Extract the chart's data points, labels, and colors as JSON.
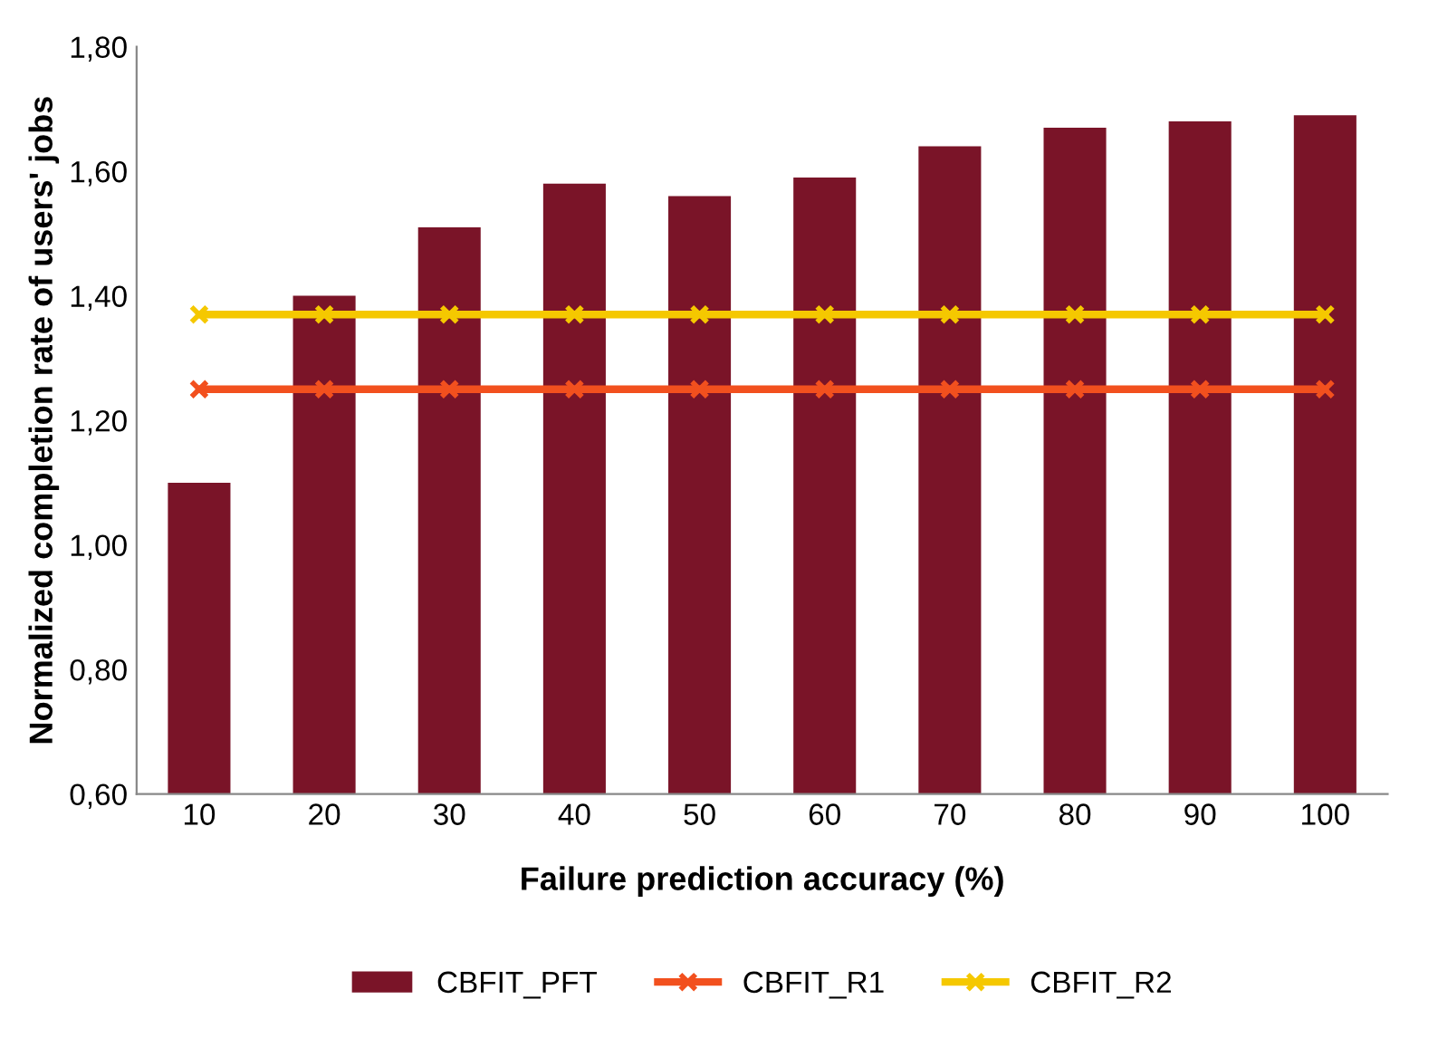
{
  "chart_data": {
    "type": "bar",
    "xlabel": "Failure prediction accuracy (%)",
    "ylabel": "Normalized completion rate of users' jobs",
    "categories": [
      "10",
      "20",
      "30",
      "40",
      "50",
      "60",
      "70",
      "80",
      "90",
      "100"
    ],
    "series": [
      {
        "name": "CBFIT_PFT",
        "color": "#7a1428",
        "values": [
          1.1,
          1.4,
          1.51,
          1.58,
          1.56,
          1.59,
          1.64,
          1.67,
          1.68,
          1.69
        ]
      },
      {
        "name": "CBFIT_R1",
        "type": "line",
        "color": "#f2501e",
        "marker": "cross",
        "values": [
          1.25,
          1.25,
          1.25,
          1.25,
          1.25,
          1.25,
          1.25,
          1.25,
          1.25,
          1.25
        ]
      },
      {
        "name": "CBFIT_R2",
        "type": "line",
        "color": "#f5c800",
        "marker": "cross",
        "values": [
          1.37,
          1.37,
          1.37,
          1.37,
          1.37,
          1.37,
          1.37,
          1.37,
          1.37,
          1.37
        ]
      }
    ],
    "ylim": [
      0.6,
      1.8
    ],
    "yticks": [
      {
        "value": 0.6,
        "label": "0,60"
      },
      {
        "value": 0.8,
        "label": "0,80"
      },
      {
        "value": 1.0,
        "label": "1,00"
      },
      {
        "value": 1.2,
        "label": "1,20"
      },
      {
        "value": 1.4,
        "label": "1,40"
      },
      {
        "value": 1.6,
        "label": "1,60"
      },
      {
        "value": 1.8,
        "label": "1,80"
      }
    ],
    "grid": false,
    "legend": "bottom"
  }
}
